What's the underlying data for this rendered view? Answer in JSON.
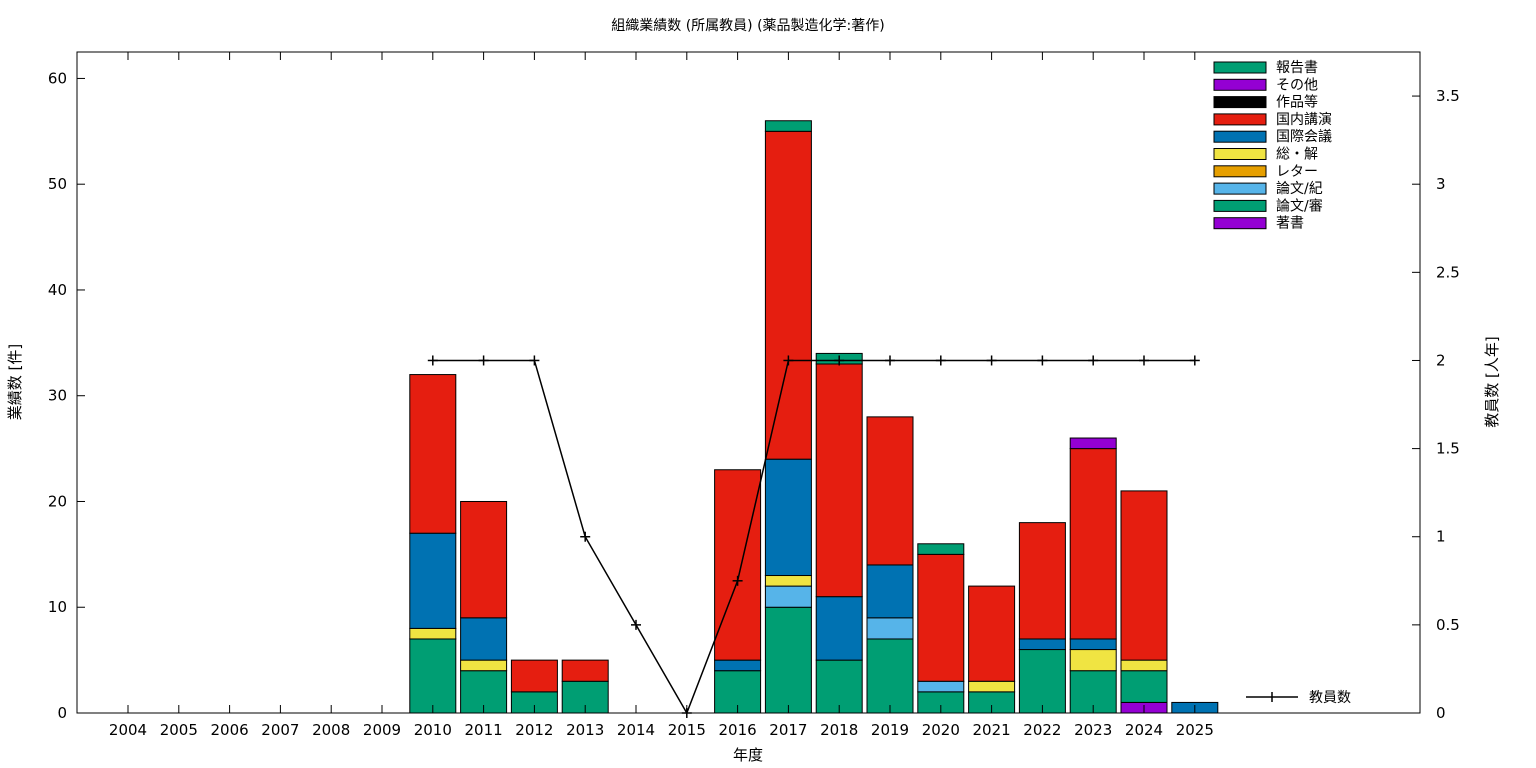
{
  "chart_data": {
    "type": "bar",
    "stacked": true,
    "title": "組織業績数 (所属教員) (薬品製造化学:著作)",
    "xlabel": "年度",
    "ylabel": "業績数 [件]",
    "y2label": "教員数 [人年]",
    "ylim": [
      0,
      62.5
    ],
    "y2lim": [
      0,
      3.75
    ],
    "yticks": [
      0,
      10,
      20,
      30,
      40,
      50,
      60
    ],
    "y2ticks": [
      "0",
      "0.5",
      "1",
      "1.5",
      "2",
      "2.5",
      "3",
      "3.5"
    ],
    "grid": false,
    "legend_position": "top-right",
    "categories": [
      "2004",
      "2005",
      "2006",
      "2007",
      "2008",
      "2009",
      "2010",
      "2011",
      "2012",
      "2013",
      "2014",
      "2015",
      "2016",
      "2017",
      "2018",
      "2019",
      "2020",
      "2021",
      "2022",
      "2023",
      "2024",
      "2025"
    ],
    "series": [
      {
        "name": "著書",
        "color": "#9400d3",
        "values": [
          0,
          0,
          0,
          0,
          0,
          0,
          0,
          0,
          0,
          0,
          0,
          0,
          0,
          0,
          0,
          0,
          0,
          0,
          0,
          0,
          1,
          0
        ]
      },
      {
        "name": "論文/審",
        "color": "#009e73",
        "values": [
          0,
          0,
          0,
          0,
          0,
          0,
          7,
          4,
          2,
          3,
          0,
          0,
          4,
          10,
          5,
          7,
          2,
          2,
          6,
          4,
          3,
          0
        ]
      },
      {
        "name": "論文/紀",
        "color": "#56b4e9",
        "values": [
          0,
          0,
          0,
          0,
          0,
          0,
          0,
          0,
          0,
          0,
          0,
          0,
          0,
          2,
          0,
          2,
          1,
          0,
          0,
          0,
          0,
          0
        ]
      },
      {
        "name": "レター",
        "color": "#e69f00",
        "values": [
          0,
          0,
          0,
          0,
          0,
          0,
          0,
          0,
          0,
          0,
          0,
          0,
          0,
          0,
          0,
          0,
          0,
          0,
          0,
          0,
          0,
          0
        ]
      },
      {
        "name": "総・解",
        "color": "#f0e442",
        "values": [
          0,
          0,
          0,
          0,
          0,
          0,
          1,
          1,
          0,
          0,
          0,
          0,
          0,
          1,
          0,
          0,
          0,
          1,
          0,
          2,
          1,
          0
        ]
      },
      {
        "name": "国際会議",
        "color": "#0072b2",
        "values": [
          0,
          0,
          0,
          0,
          0,
          0,
          9,
          4,
          0,
          0,
          0,
          0,
          1,
          11,
          6,
          5,
          0,
          0,
          1,
          1,
          0,
          1
        ]
      },
      {
        "name": "国内講演",
        "color": "#e51e10",
        "values": [
          0,
          0,
          0,
          0,
          0,
          0,
          15,
          11,
          3,
          2,
          0,
          0,
          18,
          31,
          22,
          14,
          12,
          9,
          11,
          18,
          16,
          0
        ]
      },
      {
        "name": "作品等",
        "color": "#000000",
        "values": [
          0,
          0,
          0,
          0,
          0,
          0,
          0,
          0,
          0,
          0,
          0,
          0,
          0,
          0,
          0,
          0,
          0,
          0,
          0,
          0,
          0,
          0
        ]
      },
      {
        "name": "その他",
        "color": "#9400d3",
        "values": [
          0,
          0,
          0,
          0,
          0,
          0,
          0,
          0,
          0,
          0,
          0,
          0,
          0,
          0,
          0,
          0,
          0,
          0,
          0,
          1,
          0,
          0
        ]
      },
      {
        "name": "報告書",
        "color": "#009e73",
        "values": [
          0,
          0,
          0,
          0,
          0,
          0,
          0,
          0,
          0,
          0,
          0,
          0,
          0,
          1,
          1,
          0,
          1,
          0,
          0,
          0,
          0,
          0
        ]
      }
    ],
    "legend_order": [
      "報告書",
      "その他",
      "作品等",
      "国内講演",
      "国際会議",
      "総・解",
      "レター",
      "論文/紀",
      "論文/審",
      "著書"
    ],
    "line_series": {
      "name": "教員数",
      "color": "#000000",
      "axis": "y2",
      "x": [
        "2010",
        "2011",
        "2012",
        "2013",
        "2014",
        "2015",
        "2016",
        "2017",
        "2018",
        "2019",
        "2020",
        "2021",
        "2022",
        "2023",
        "2024",
        "2025"
      ],
      "values": [
        2,
        2,
        2,
        1,
        0.5,
        0,
        0.75,
        2,
        2,
        2,
        2,
        2,
        2,
        2,
        2,
        2
      ]
    }
  }
}
